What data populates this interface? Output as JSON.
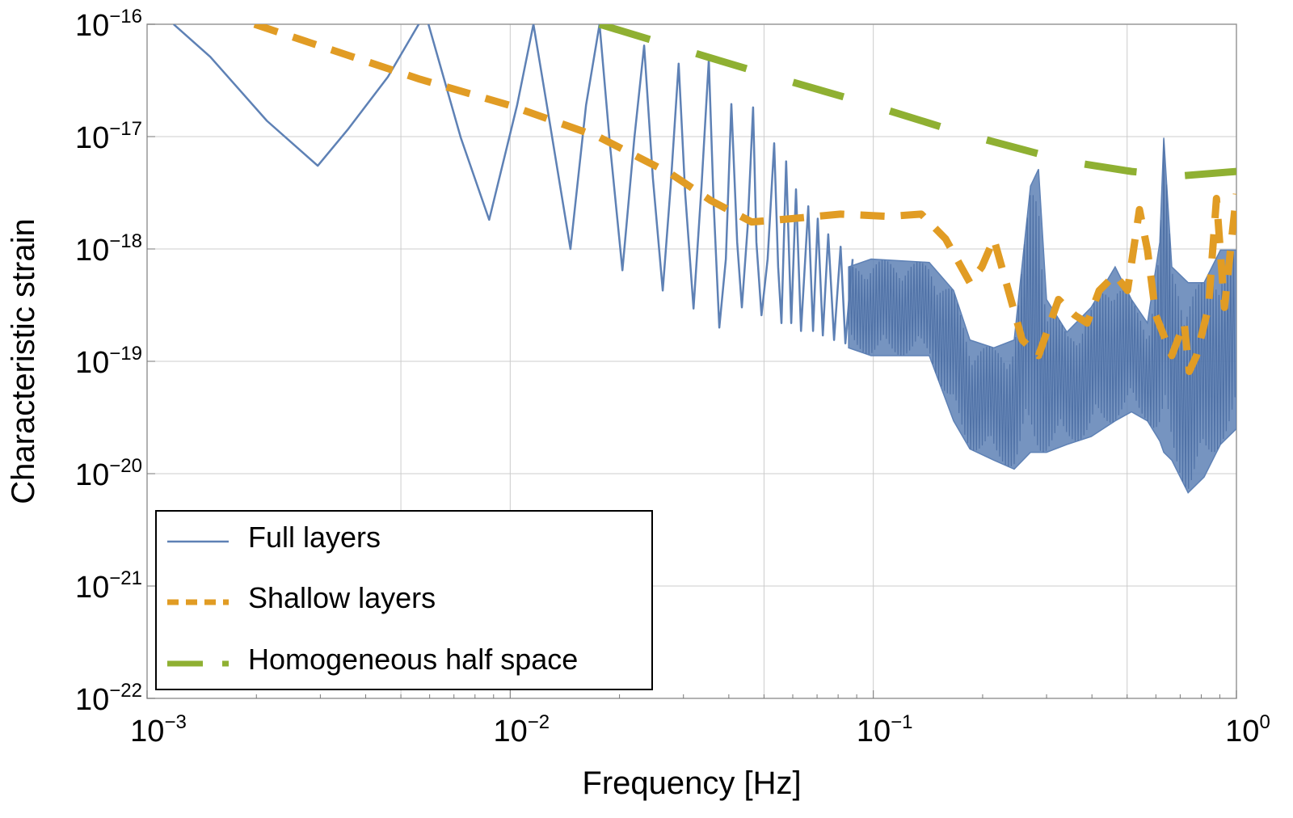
{
  "chart_data": {
    "type": "line",
    "xlabel": "Frequency [Hz]",
    "ylabel": "Characteristic strain",
    "xscale": "log",
    "yscale": "log",
    "xlim_log10": [
      -3,
      0
    ],
    "ylim_log10": [
      -22,
      -16
    ],
    "x_ticks": [
      {
        "base": "10",
        "exp": "−3",
        "v": -3
      },
      {
        "base": "10",
        "exp": "−2",
        "v": -2
      },
      {
        "base": "10",
        "exp": "−1",
        "v": -1
      },
      {
        "base": "10",
        "exp": "0",
        "v": 0
      }
    ],
    "y_ticks": [
      {
        "base": "10",
        "exp": "−16",
        "v": -16
      },
      {
        "base": "10",
        "exp": "−17",
        "v": -17
      },
      {
        "base": "10",
        "exp": "−18",
        "v": -18
      },
      {
        "base": "10",
        "exp": "−19",
        "v": -19
      },
      {
        "base": "10",
        "exp": "−20",
        "v": -20
      },
      {
        "base": "10",
        "exp": "−21",
        "v": -21
      },
      {
        "base": "10",
        "exp": "−22",
        "v": -22
      }
    ],
    "grid": true,
    "grid_x_log10": [
      -2.301,
      -2,
      -1.301,
      -1,
      -0.301
    ],
    "legend_position": "bottom-left",
    "series": [
      {
        "name": "Full layers",
        "color": "#5e81b5",
        "style": "solid",
        "points_log10": [
          [
            -2.927,
            -16
          ],
          [
            -2.826,
            -16.29
          ],
          [
            -2.67,
            -16.86
          ],
          [
            -2.53,
            -17.26
          ],
          [
            -2.448,
            -16.94
          ],
          [
            -2.337,
            -16.47
          ],
          [
            -2.252,
            -16
          ],
          [
            -2.24,
            -15.8
          ],
          [
            -2.225,
            -16
          ],
          [
            -2.136,
            -17.01
          ],
          [
            -2.058,
            -17.74
          ],
          [
            -1.981,
            -16.72
          ],
          [
            -1.936,
            -16
          ],
          [
            -1.892,
            -16.86
          ],
          [
            -1.834,
            -18.0
          ],
          [
            -1.791,
            -16.72
          ],
          [
            -1.754,
            -16
          ],
          [
            -1.725,
            -17.08
          ],
          [
            -1.691,
            -18.19
          ],
          [
            -1.658,
            -17.01
          ],
          [
            -1.631,
            -16.19
          ],
          [
            -1.607,
            -17.37
          ],
          [
            -1.58,
            -18.37
          ],
          [
            -1.558,
            -17.44
          ],
          [
            -1.536,
            -16.35
          ],
          [
            -1.518,
            -17.51
          ],
          [
            -1.495,
            -18.53
          ],
          [
            -1.473,
            -17.44
          ],
          [
            -1.453,
            -16.32
          ],
          [
            -1.44,
            -17.58
          ],
          [
            -1.424,
            -18.7
          ],
          [
            -1.406,
            -18.09
          ],
          [
            -1.391,
            -16.71
          ],
          [
            -1.375,
            -17.94
          ],
          [
            -1.362,
            -18.52
          ],
          [
            -1.346,
            -17.8
          ],
          [
            -1.331,
            -16.74
          ],
          [
            -1.322,
            -17.94
          ],
          [
            -1.308,
            -18.59
          ],
          [
            -1.291,
            -18.09
          ],
          [
            -1.273,
            -17.06
          ],
          [
            -1.262,
            -18.16
          ],
          [
            -1.253,
            -18.66
          ],
          [
            -1.24,
            -17.22
          ],
          [
            -1.226,
            -18.66
          ],
          [
            -1.213,
            -17.47
          ],
          [
            -1.199,
            -18.73
          ],
          [
            -1.179,
            -17.62
          ],
          [
            -1.166,
            -18.73
          ],
          [
            -1.153,
            -17.73
          ],
          [
            -1.139,
            -18.77
          ],
          [
            -1.124,
            -17.87
          ],
          [
            -1.108,
            -18.81
          ],
          [
            -1.09,
            -17.98
          ],
          [
            -1.077,
            -18.84
          ],
          [
            -1.057,
            -18.09
          ]
        ],
        "dense_band_log10": {
          "x": [
            -1.068,
            -1.006,
            -0.846,
            -0.779,
            -0.734,
            -0.668,
            -0.612,
            -0.567,
            -0.545,
            -0.523,
            -0.467,
            -0.4,
            -0.334,
            -0.289,
            -0.245,
            -0.211,
            -0.2,
            -0.178,
            -0.133,
            -0.089,
            -0.044,
            0
          ],
          "upper": [
            -18.16,
            -18.09,
            -18.12,
            -18.37,
            -18.81,
            -18.88,
            -18.81,
            -17.44,
            -17.29,
            -18.45,
            -18.74,
            -18.52,
            -18.16,
            -18.45,
            -18.66,
            -17.94,
            -17.01,
            -18.16,
            -18.3,
            -18.3,
            -18.01,
            -18.01
          ],
          "lower": [
            -18.88,
            -18.95,
            -18.95,
            -19.53,
            -19.78,
            -19.88,
            -19.96,
            -19.81,
            -19.81,
            -19.81,
            -19.74,
            -19.67,
            -19.53,
            -19.45,
            -19.53,
            -19.71,
            -19.81,
            -19.88,
            -20.17,
            -20.03,
            -19.74,
            -19.6
          ]
        }
      },
      {
        "name": "Shallow layers",
        "color": "#e19c24",
        "style": "dashed",
        "points_log10": [
          [
            -2.704,
            -16
          ],
          [
            -2.248,
            -16.49
          ],
          [
            -2.003,
            -16.72
          ],
          [
            -1.758,
            -17.0
          ],
          [
            -1.558,
            -17.33
          ],
          [
            -1.447,
            -17.57
          ],
          [
            -1.335,
            -17.76
          ],
          [
            -1.224,
            -17.73
          ],
          [
            -1.09,
            -17.69
          ],
          [
            -0.957,
            -17.71
          ],
          [
            -0.868,
            -17.69
          ],
          [
            -0.801,
            -17.91
          ],
          [
            -0.734,
            -18.3
          ],
          [
            -0.701,
            -18.16
          ],
          [
            -0.668,
            -17.91
          ],
          [
            -0.634,
            -18.3
          ],
          [
            -0.59,
            -18.81
          ],
          [
            -0.545,
            -18.95
          ],
          [
            -0.49,
            -18.45
          ],
          [
            -0.445,
            -18.59
          ],
          [
            -0.411,
            -18.66
          ],
          [
            -0.378,
            -18.37
          ],
          [
            -0.334,
            -18.23
          ],
          [
            -0.3,
            -18.37
          ],
          [
            -0.267,
            -17.65
          ],
          [
            -0.245,
            -18.01
          ],
          [
            -0.222,
            -18.59
          ],
          [
            -0.178,
            -18.95
          ],
          [
            -0.144,
            -18.66
          ],
          [
            -0.13,
            -19.09
          ],
          [
            -0.11,
            -18.95
          ],
          [
            -0.077,
            -18.52
          ],
          [
            -0.055,
            -17.55
          ],
          [
            -0.033,
            -18.52
          ],
          [
            0,
            -17.51
          ]
        ]
      },
      {
        "name": "Homogeneous half space",
        "color": "#8fb032",
        "style": "long-dashed",
        "points_log10": [
          [
            -1.754,
            -16
          ],
          [
            -1.458,
            -16.29
          ],
          [
            -1.324,
            -16.42
          ],
          [
            -1.046,
            -16.68
          ],
          [
            -0.757,
            -16.97
          ],
          [
            -0.467,
            -17.22
          ],
          [
            -0.289,
            -17.31
          ],
          [
            -0.156,
            -17.35
          ],
          [
            0,
            -17.31
          ]
        ]
      }
    ]
  }
}
